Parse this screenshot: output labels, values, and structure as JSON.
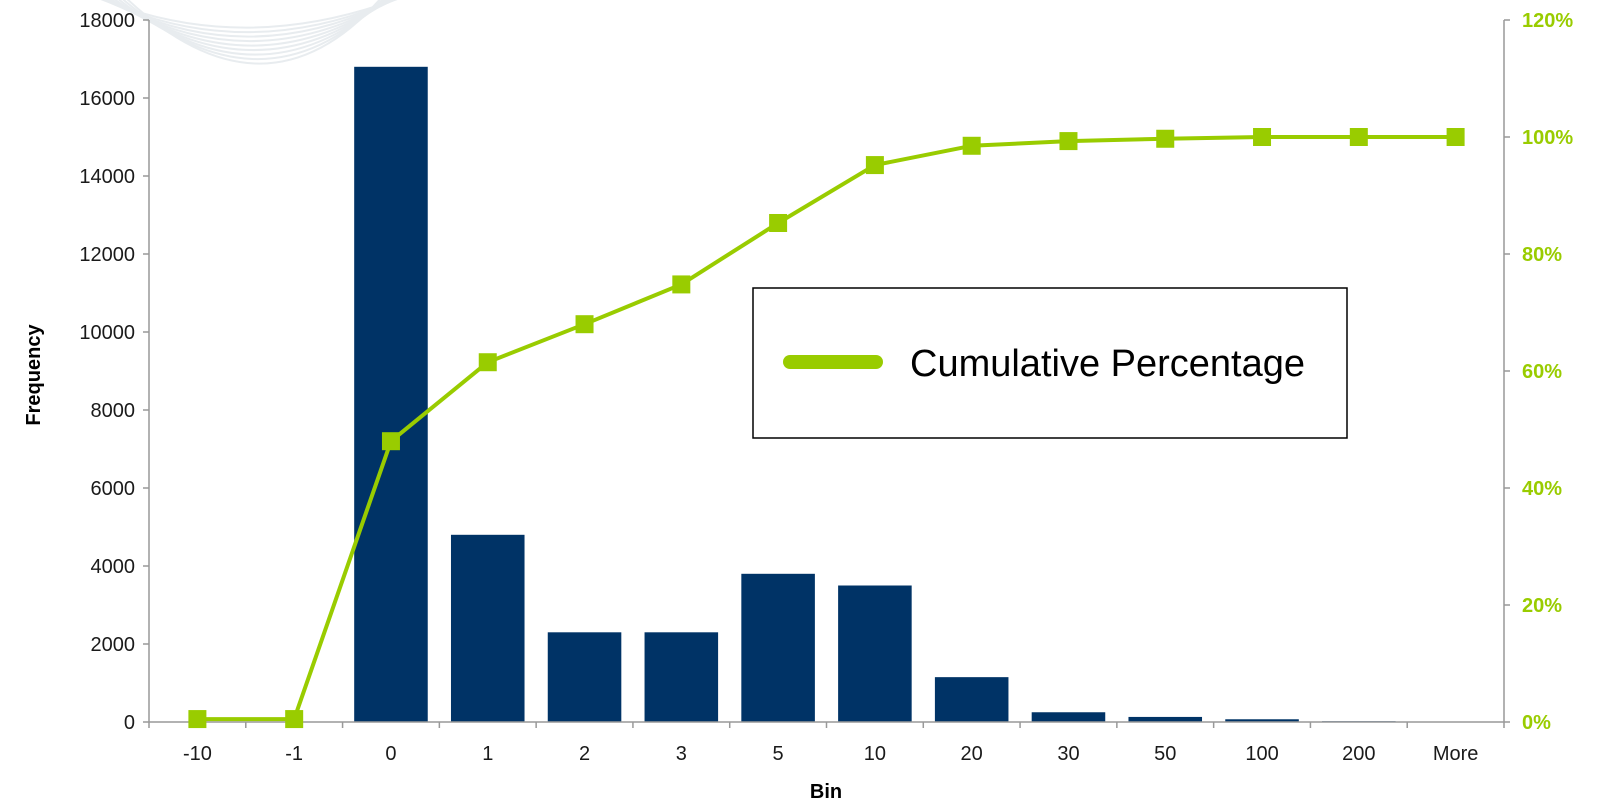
{
  "chart_data": {
    "type": "bar",
    "categories": [
      "-10",
      "-1",
      "0",
      "1",
      "2",
      "3",
      "5",
      "10",
      "20",
      "30",
      "50",
      "100",
      "200",
      "More"
    ],
    "xlabel": "Bin",
    "ylabel": "Frequency",
    "ylim": [
      0,
      18000
    ],
    "y_ticks": [
      "0",
      "2000",
      "4000",
      "6000",
      "8000",
      "10000",
      "12000",
      "14000",
      "16000",
      "18000"
    ],
    "y2lim": [
      0,
      1.2
    ],
    "y2_ticks": [
      "0%",
      "20%",
      "40%",
      "60%",
      "80%",
      "100%",
      "120%"
    ],
    "series": [
      {
        "kind": "bar",
        "axis": "left",
        "values": [
          0,
          0,
          16800,
          4800,
          2300,
          2300,
          3800,
          3500,
          1150,
          250,
          130,
          70,
          20,
          0
        ]
      },
      {
        "kind": "line",
        "axis": "right",
        "name": "Cumulative Percentage",
        "values": [
          0.005,
          0.005,
          0.48,
          0.615,
          0.68,
          0.748,
          0.853,
          0.952,
          0.985,
          0.993,
          0.997,
          1.0,
          1.0,
          1.0
        ]
      }
    ],
    "grid": false,
    "legend": {
      "position": "center-right"
    },
    "colors": {
      "bar": "#003366",
      "line": "#99cc00",
      "right_axis_text": "#99cc00",
      "axis_line": "#999999"
    }
  }
}
